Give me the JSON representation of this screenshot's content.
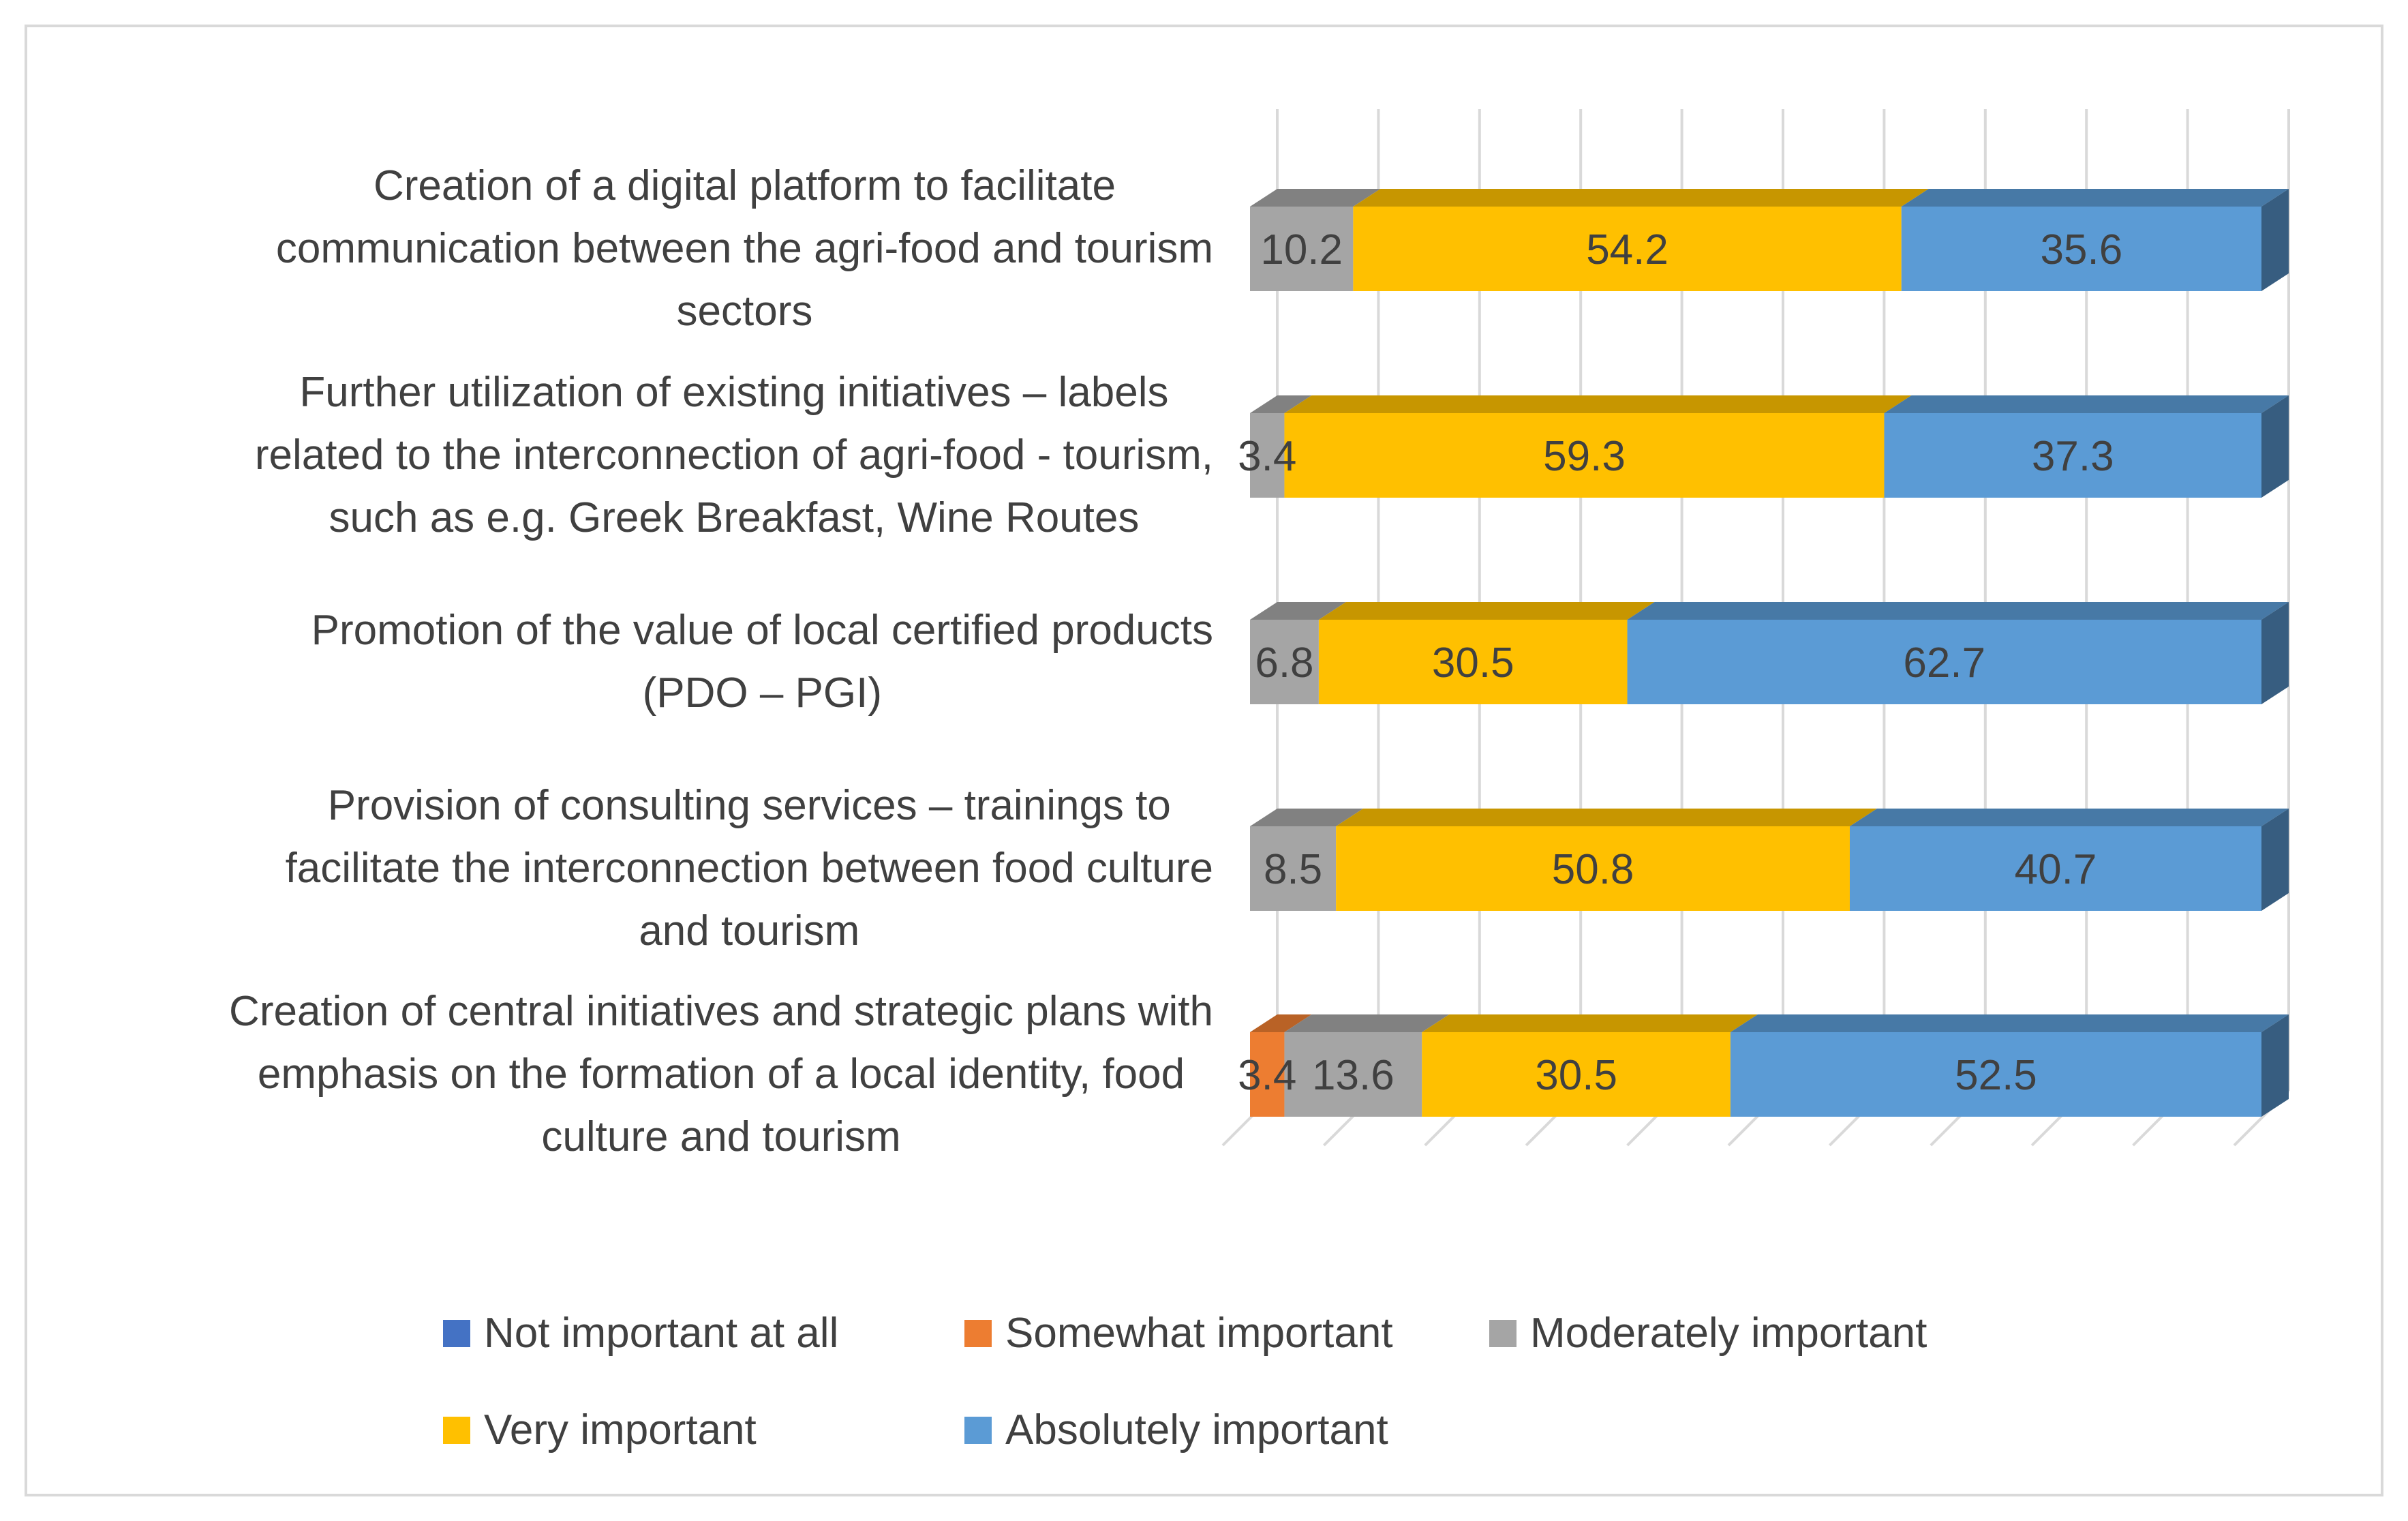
{
  "chart_data": {
    "type": "bar",
    "orientation": "horizontal-stacked-3d",
    "categories": [
      "Creation of a digital platform to facilitate communication between the agri-food and tourism sectors",
      "Further utilization of existing initiatives – labels related to the interconnection of agri-food - tourism, such as e.g. Greek Breakfast, Wine Routes",
      "Promotion of the value of local certified products (PDO – PGI)",
      "Provision of consulting services – trainings to facilitate the interconnection between food culture and tourism",
      "Creation of central initiatives and strategic plans with emphasis on the formation of a local identity, food culture and tourism"
    ],
    "category_lines": [
      [
        "Creation of a digital platform to facilitate",
        "communication between the agri-food and tourism",
        "sectors"
      ],
      [
        "Further utilization of existing initiatives – labels",
        "related to the interconnection of agri-food - tourism,",
        "such as e.g. Greek Breakfast, Wine Routes"
      ],
      [
        "Promotion of the value of local certified products",
        "(PDO – PGI)"
      ],
      [
        "Provision of consulting services – trainings to",
        "facilitate the interconnection between food culture",
        "and tourism"
      ],
      [
        "Creation of central initiatives and strategic plans with",
        "emphasis on the formation of a local identity, food",
        "culture and tourism"
      ]
    ],
    "series": [
      {
        "name": "Not important at all",
        "color": "#4472c4",
        "values": [
          0,
          0,
          0,
          0,
          0
        ]
      },
      {
        "name": "Somewhat important",
        "color": "#ed7d31",
        "values": [
          0,
          0,
          0,
          0,
          3.4
        ]
      },
      {
        "name": "Moderately important",
        "color": "#a5a5a5",
        "values": [
          10.2,
          3.4,
          6.8,
          8.5,
          13.6
        ]
      },
      {
        "name": "Very important",
        "color": "#ffc000",
        "values": [
          54.2,
          59.3,
          30.5,
          50.8,
          30.5
        ]
      },
      {
        "name": "Absolutely important",
        "color": "#5b9bd5",
        "values": [
          35.6,
          37.3,
          62.7,
          40.7,
          52.5
        ]
      }
    ],
    "data_labels": [
      [
        "",
        "",
        "10.2",
        "54.2",
        "35.6"
      ],
      [
        "",
        "",
        "3.4",
        "59.3",
        "37.3"
      ],
      [
        "",
        "",
        "6.8",
        "30.5",
        "62.7"
      ],
      [
        "",
        "",
        "8.5",
        "50.8",
        "40.7"
      ],
      [
        "",
        "3.4",
        "13.6",
        "30.5",
        "52.5"
      ]
    ],
    "xlim": [
      0,
      100
    ],
    "grid": true,
    "legend_position": "bottom"
  }
}
